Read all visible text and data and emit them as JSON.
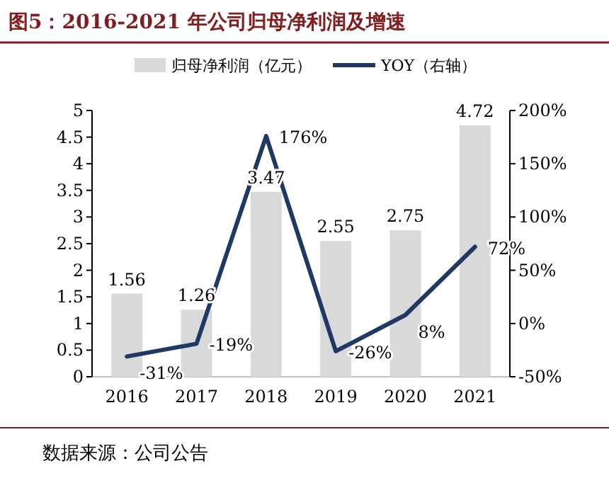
{
  "chart_data": {
    "type": "bar",
    "title": "图5：2016-2021 年公司归母净利润及增速",
    "categories": [
      "2016",
      "2017",
      "2018",
      "2019",
      "2020",
      "2021"
    ],
    "series": [
      {
        "name": "归母净利润（亿元）",
        "color": "#d9d9d9",
        "values": [
          1.56,
          1.26,
          3.47,
          2.55,
          2.75,
          4.72
        ],
        "value_labels": [
          "1.56",
          "1.26",
          "3.47",
          "2.55",
          "2.75",
          "4.72"
        ]
      },
      {
        "name": "YOY（右轴）",
        "type": "line",
        "axis": "y2",
        "color": "#1f3864",
        "values": [
          -31,
          -19,
          176,
          -26,
          8,
          72
        ],
        "value_labels": [
          "-31%",
          "-19%",
          "176%",
          "-26%",
          "8%",
          "72%"
        ]
      }
    ],
    "ylim": [
      0,
      5
    ],
    "yticks": [
      0,
      0.5,
      1,
      1.5,
      2,
      2.5,
      3,
      3.5,
      4,
      4.5,
      5
    ],
    "y2lim": [
      -50,
      200
    ],
    "y2ticks": [
      {
        "value": -50,
        "label": "-50%"
      },
      {
        "value": 0,
        "label": "0%"
      },
      {
        "value": 50,
        "label": "50%"
      },
      {
        "value": 100,
        "label": "100%"
      },
      {
        "value": 150,
        "label": "150%"
      },
      {
        "value": 200,
        "label": "200%"
      }
    ],
    "legend": "top",
    "grid": false,
    "annotations": [
      "数据来源：公司公告"
    ]
  }
}
